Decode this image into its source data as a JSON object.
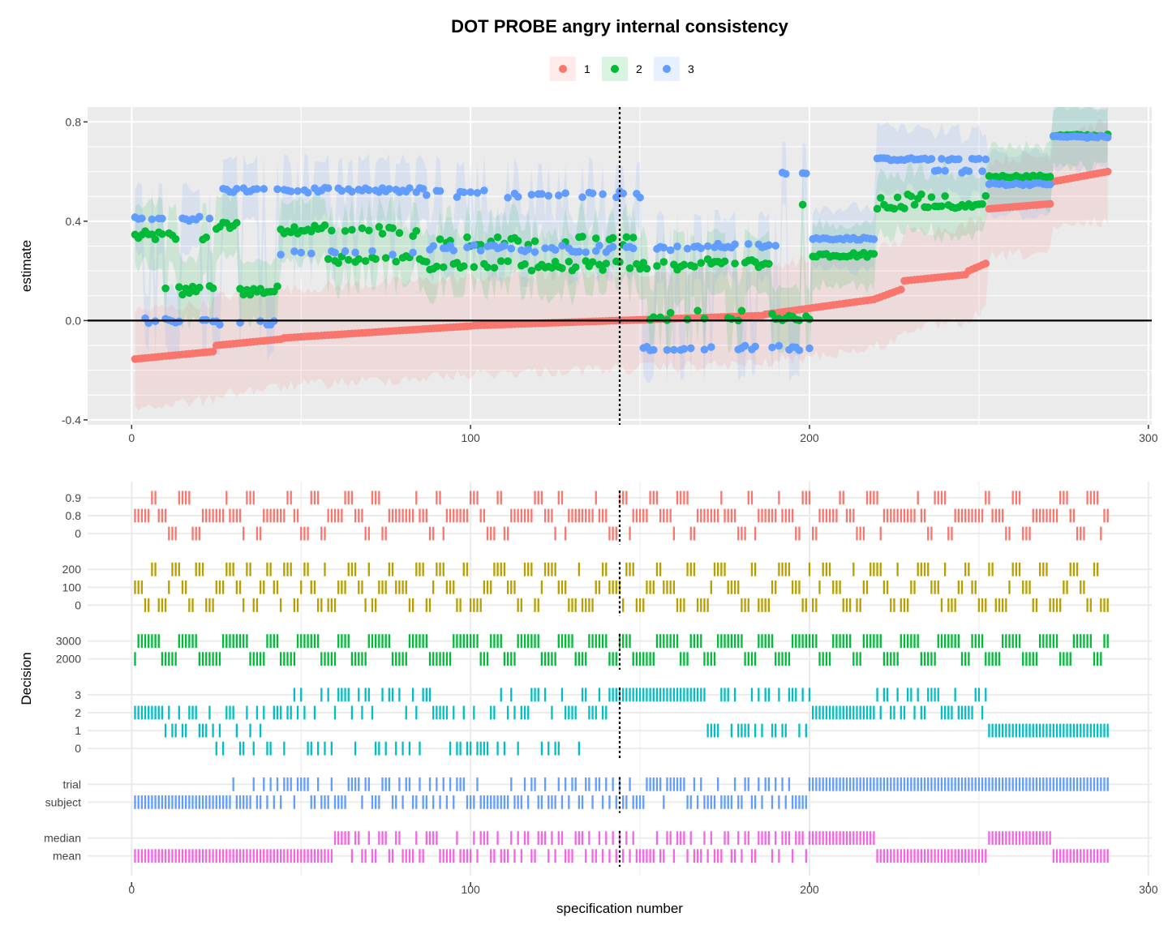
{
  "title": "DOT PROBE angry internal consistency",
  "legend": {
    "items": [
      {
        "label": "1",
        "color": "#F8766D"
      },
      {
        "label": "2",
        "color": "#00BA38"
      },
      {
        "label": "3",
        "color": "#619CFF"
      }
    ]
  },
  "chart_data": [
    {
      "type": "scatter",
      "title": "DOT PROBE angry internal consistency",
      "xlabel": "",
      "ylabel": "estimate",
      "xlim": [
        -13,
        301
      ],
      "ylim": [
        -0.42,
        0.86
      ],
      "x_ticks": [
        0,
        100,
        200,
        300
      ],
      "x_tick_labels": [
        "0",
        "100",
        "200",
        "300"
      ],
      "y_ticks": [
        -0.4,
        0.0,
        0.4,
        0.8
      ],
      "y_tick_labels": [
        "-0.4",
        "0.0",
        "0.4",
        "0.8"
      ],
      "reference_line_y": 0,
      "reference_line_x": 144,
      "grid": true,
      "legend_position": "top",
      "n_specifications": 288,
      "series": [
        {
          "name": "1",
          "color": "#F8766D",
          "segments": [
            {
              "x_from": 1,
              "x_to": 24,
              "y_from": -0.155,
              "y_to": -0.125
            },
            {
              "x_from": 25,
              "x_to": 44,
              "y_from": -0.1,
              "y_to": -0.075
            },
            {
              "x_from": 45,
              "x_to": 100,
              "y_from": -0.07,
              "y_to": -0.022
            },
            {
              "x_from": 101,
              "x_to": 186,
              "y_from": -0.02,
              "y_to": 0.02
            },
            {
              "x_from": 187,
              "x_to": 219,
              "y_from": 0.025,
              "y_to": 0.085
            },
            {
              "x_from": 220,
              "x_to": 227,
              "y_from": 0.09,
              "y_to": 0.125
            },
            {
              "x_from": 228,
              "x_to": 246,
              "y_from": 0.16,
              "y_to": 0.185
            },
            {
              "x_from": 247,
              "x_to": 252,
              "y_from": 0.2,
              "y_to": 0.23
            },
            {
              "x_from": 253,
              "x_to": 271,
              "y_from": 0.45,
              "y_to": 0.47
            },
            {
              "x_from": 272,
              "x_to": 288,
              "y_from": 0.56,
              "y_to": 0.6
            }
          ]
        },
        {
          "name": "2",
          "color": "#00BA38",
          "segments": [
            {
              "x_from": 1,
              "x_to": 9,
              "y": 0.34,
              "noise": 0.02
            },
            {
              "x_from": 10,
              "x_to": 24,
              "y": 0.12,
              "alt": 0.34,
              "noise": 0.02
            },
            {
              "x_from": 25,
              "x_to": 31,
              "y": 0.38,
              "noise": 0.02
            },
            {
              "x_from": 32,
              "x_to": 43,
              "y": 0.12,
              "noise": 0.02
            },
            {
              "x_from": 44,
              "x_to": 57,
              "y": 0.37,
              "noise": 0.02
            },
            {
              "x_from": 58,
              "x_to": 86,
              "y": 0.24,
              "alt": 0.36,
              "noise": 0.02
            },
            {
              "x_from": 87,
              "x_to": 150,
              "y": 0.22,
              "alt": 0.32,
              "noise": 0.02
            },
            {
              "x_from": 151,
              "x_to": 168,
              "y": 0.22,
              "alt": 0.02,
              "noise": 0.02
            },
            {
              "x_from": 169,
              "x_to": 190,
              "y": 0.23,
              "alt": 0.02,
              "noise": 0.02
            },
            {
              "x_from": 191,
              "x_to": 200,
              "y": 0.01,
              "alt": 0.46,
              "noise": 0.01
            },
            {
              "x_from": 201,
              "x_to": 219,
              "y": 0.265,
              "noise": 0.01
            },
            {
              "x_from": 220,
              "x_to": 252,
              "y": 0.46,
              "alt": 0.5,
              "noise": 0.01
            },
            {
              "x_from": 253,
              "x_to": 271,
              "y": 0.58,
              "noise": 0.005
            },
            {
              "x_from": 272,
              "x_to": 288,
              "y": 0.745,
              "noise": 0.005
            }
          ]
        },
        {
          "name": "3",
          "color": "#619CFF",
          "segments": [
            {
              "x_from": 1,
              "x_to": 24,
              "y": 0.41,
              "alt": 0.0,
              "noise": 0.01
            },
            {
              "x_from": 25,
              "x_to": 43,
              "y": 0.525,
              "alt": -0.01,
              "noise": 0.01
            },
            {
              "x_from": 44,
              "x_to": 86,
              "y": 0.525,
              "alt": 0.27,
              "noise": 0.01
            },
            {
              "x_from": 87,
              "x_to": 150,
              "y": 0.29,
              "alt": 0.51,
              "noise": 0.015
            },
            {
              "x_from": 151,
              "x_to": 168,
              "y": 0.29,
              "alt": -0.11,
              "noise": 0.01
            },
            {
              "x_from": 169,
              "x_to": 190,
              "y": 0.3,
              "alt": -0.11,
              "noise": 0.01
            },
            {
              "x_from": 191,
              "x_to": 200,
              "y": -0.11,
              "alt": 0.6,
              "noise": 0.01
            },
            {
              "x_from": 201,
              "x_to": 219,
              "y": 0.33,
              "noise": 0.005
            },
            {
              "x_from": 220,
              "x_to": 252,
              "y": 0.65,
              "alt": 0.6,
              "noise": 0.005
            },
            {
              "x_from": 253,
              "x_to": 271,
              "y": 0.55,
              "noise": 0.005
            },
            {
              "x_from": 272,
              "x_to": 288,
              "y": 0.74,
              "noise": 0.005
            }
          ]
        }
      ]
    },
    {
      "type": "heatmap",
      "xlabel": "specification number",
      "ylabel": "Decision",
      "xlim": [
        -13,
        301
      ],
      "x_ticks": [
        0,
        100,
        200,
        300
      ],
      "x_tick_labels": [
        "0",
        "100",
        "200",
        "300"
      ],
      "reference_line_x": 144,
      "panels": [
        {
          "levels": [
            "0.9",
            "0.8",
            "0"
          ],
          "color": "#F8766D",
          "runs": [
            [
              1,
              1,
              2
            ],
            [
              2,
              1,
              1
            ],
            [
              3,
              0,
              1
            ],
            [
              4,
              1,
              2
            ],
            [
              5,
              2,
              1
            ],
            [
              6,
              0,
              2
            ],
            [
              7,
              2,
              1
            ],
            [
              8,
              1,
              1
            ]
          ]
        },
        {
          "levels": [
            "200",
            "100",
            "0"
          ],
          "color": "#B79F00",
          "runs": [
            [
              1,
              1,
              2
            ],
            [
              2,
              2,
              1
            ],
            [
              3,
              0,
              1
            ],
            [
              4,
              2,
              2
            ],
            [
              5,
              1,
              1
            ],
            [
              6,
              0,
              2
            ]
          ]
        },
        {
          "levels": [
            "3000",
            "2000"
          ],
          "color": "#00BA38",
          "runs": [
            [
              1,
              1,
              1
            ],
            [
              2,
              0,
              6
            ],
            [
              3,
              1,
              3
            ],
            [
              4,
              0,
              4
            ],
            [
              5,
              1,
              2
            ]
          ]
        },
        {
          "levels": [
            "3",
            "2",
            "1",
            "0"
          ],
          "color": "#00BFC4",
          "blocks": [
            {
              "x_from": 1,
              "x_to": 9,
              "level": "2"
            },
            {
              "x_from": 10,
              "x_to": 24,
              "levels": [
                "2",
                "1"
              ]
            },
            {
              "x_from": 25,
              "x_to": 43,
              "levels": [
                "0",
                "1",
                "2"
              ]
            },
            {
              "x_from": 44,
              "x_to": 86,
              "levels": [
                "0",
                "3",
                "2"
              ]
            },
            {
              "x_from": 87,
              "x_to": 140,
              "levels": [
                "0",
                "3",
                "2"
              ]
            },
            {
              "x_from": 141,
              "x_to": 168,
              "level": "3"
            },
            {
              "x_from": 169,
              "x_to": 200,
              "levels": [
                "3",
                "1"
              ]
            },
            {
              "x_from": 201,
              "x_to": 219,
              "level": "2"
            },
            {
              "x_from": 220,
              "x_to": 252,
              "levels": [
                "3",
                "2"
              ]
            },
            {
              "x_from": 253,
              "x_to": 288,
              "level": "1"
            }
          ]
        },
        {
          "levels": [
            "trial",
            "subject"
          ],
          "color": "#619CFF",
          "blocks": [
            {
              "x_from": 1,
              "x_to": 29,
              "level": "subject"
            },
            {
              "x_from": 30,
              "x_to": 200,
              "levels": [
                "trial",
                "subject"
              ]
            },
            {
              "x_from": 201,
              "x_to": 288,
              "level": "trial"
            }
          ]
        },
        {
          "levels": [
            "median",
            "mean"
          ],
          "color": "#F564E3",
          "blocks": [
            {
              "x_from": 1,
              "x_to": 57,
              "level": "mean"
            },
            {
              "x_from": 58,
              "x_to": 200,
              "levels": [
                "median",
                "mean"
              ]
            },
            {
              "x_from": 201,
              "x_to": 219,
              "level": "median"
            },
            {
              "x_from": 220,
              "x_to": 252,
              "level": "mean"
            },
            {
              "x_from": 253,
              "x_to": 271,
              "level": "median"
            },
            {
              "x_from": 272,
              "x_to": 288,
              "level": "mean"
            }
          ]
        }
      ]
    }
  ]
}
